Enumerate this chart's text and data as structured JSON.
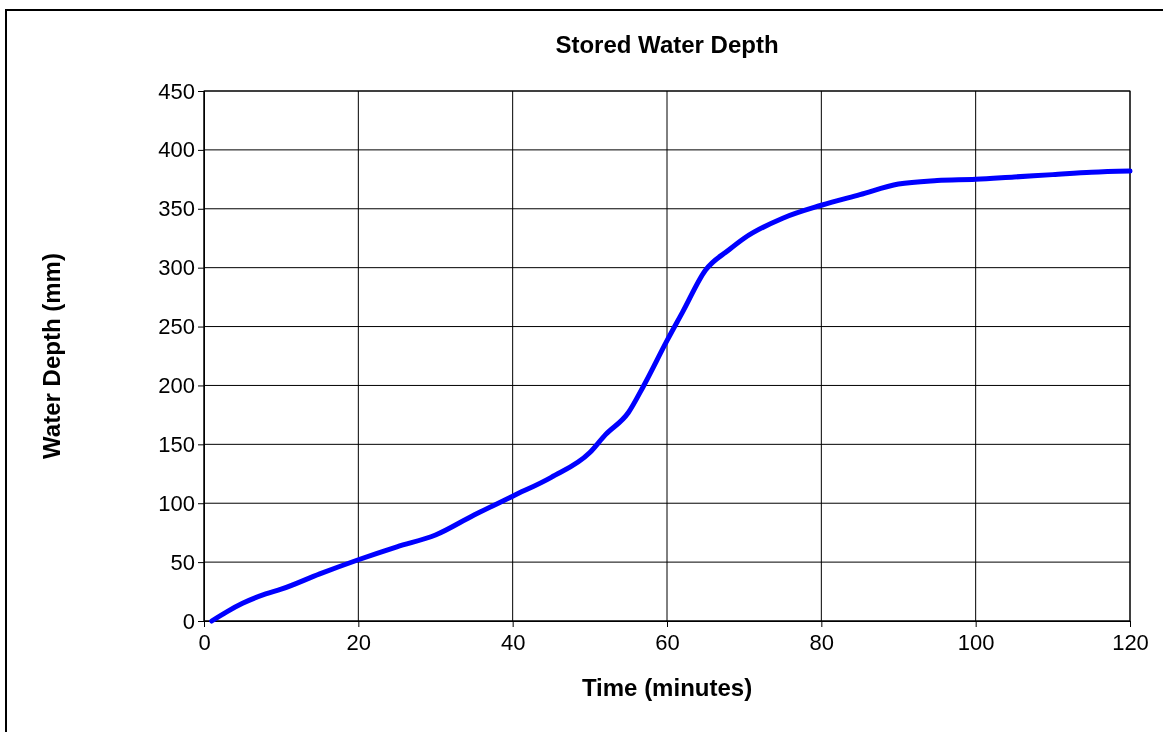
{
  "chart_data": {
    "type": "line",
    "title": "Stored Water Depth",
    "xlabel": "Time (minutes)",
    "ylabel": "Water Depth (mm)",
    "x": [
      1,
      3,
      5,
      8,
      10,
      15,
      20,
      25,
      30,
      35,
      40,
      45,
      50,
      52,
      55,
      57,
      60,
      62,
      65,
      68,
      70,
      75,
      80,
      85,
      90,
      95,
      100,
      105,
      110,
      115,
      120
    ],
    "series": [
      {
        "color": "#0000ff",
        "values": [
          0,
          8,
          15,
          23,
          27,
          40,
          52,
          63,
          73,
          90,
          106,
          122,
          143,
          158,
          177,
          200,
          238,
          262,
          298,
          315,
          325,
          342,
          353,
          362,
          371,
          374,
          375,
          377,
          379,
          381,
          382
        ]
      }
    ],
    "xlim": [
      0,
      120
    ],
    "xticks": [
      0,
      20,
      40,
      60,
      80,
      100,
      120
    ],
    "ylim": [
      0,
      450
    ],
    "yticks": [
      0,
      50,
      100,
      150,
      200,
      250,
      300,
      350,
      400,
      450
    ],
    "grid": true,
    "marker": "none",
    "line_style": "solid"
  }
}
